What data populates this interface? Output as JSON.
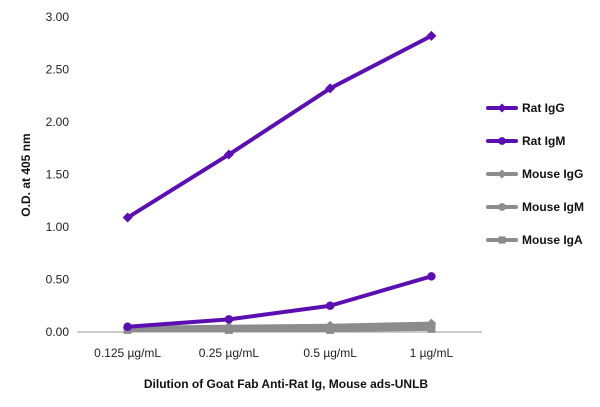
{
  "chart_data": {
    "type": "line",
    "xlabel": "Dilution of Goat Fab Anti-Rat Ig, Mouse ads-UNLB",
    "ylabel": "O.D. at 405 nm",
    "categories": [
      "0.125 µg/mL",
      "0.25 µg/mL",
      "0.5 µg/mL",
      "1 µg/mL"
    ],
    "ylim": [
      0,
      3.0
    ],
    "yticks": [
      "0.00",
      "0.50",
      "1.00",
      "1.50",
      "2.00",
      "2.50",
      "3.00"
    ],
    "grid": "none",
    "legend_position": "right",
    "series": [
      {
        "name": "Rat IgG",
        "values": [
          1.09,
          1.69,
          2.32,
          2.82
        ],
        "color": "#5b0fb1",
        "marker": "diamond"
      },
      {
        "name": "Rat IgM",
        "values": [
          0.05,
          0.12,
          0.25,
          0.53
        ],
        "color": "#5b0fb1",
        "marker": "circle"
      },
      {
        "name": "Mouse IgG",
        "values": [
          0.04,
          0.05,
          0.06,
          0.08
        ],
        "color": "#8c8c8c",
        "marker": "diamond"
      },
      {
        "name": "Mouse IgM",
        "values": [
          0.03,
          0.04,
          0.04,
          0.05
        ],
        "color": "#8c8c8c",
        "marker": "circle"
      },
      {
        "name": "Mouse IgA",
        "values": [
          0.02,
          0.02,
          0.02,
          0.03
        ],
        "color": "#8c8c8c",
        "marker": "square"
      }
    ]
  }
}
